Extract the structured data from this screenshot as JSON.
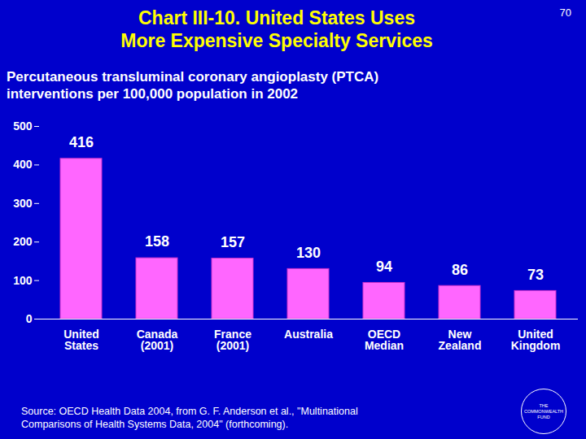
{
  "chart_data": {
    "type": "bar",
    "title": "Chart III-10. United States Uses\nMore Expensive Specialty Services",
    "page_number": "70",
    "subtitle": "Percutaneous transluminal coronary angioplasty (PTCA)\ninterventions per 100,000 population in 2002",
    "categories": [
      "United\nStates",
      "Canada\n(2001)",
      "France\n(2001)",
      "Australia",
      "OECD\nMedian",
      "New\nZealand",
      "United\nKingdom"
    ],
    "values": [
      416,
      158,
      157,
      130,
      94,
      86,
      73
    ],
    "color": "#ff66ff",
    "ylim": [
      0,
      500
    ],
    "yticks": [
      0,
      100,
      200,
      300,
      400,
      500
    ],
    "grid": false,
    "data_labels": true,
    "source": "Source: OECD Health Data 2004, from G. F. Anderson et al., \"Multinational\nComparisons of Health Systems Data, 2004\" (forthcoming).",
    "logo": "THE\nCOMMONWEALTH\nFUND"
  }
}
